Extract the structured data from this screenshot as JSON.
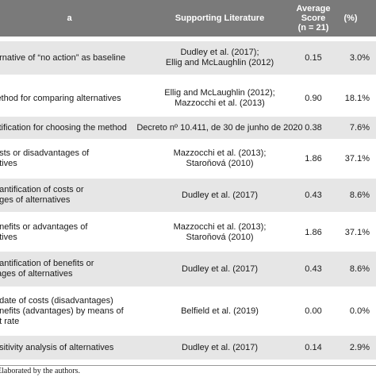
{
  "header": {
    "criteria": "a",
    "literature": "Supporting Literature",
    "score": "Average\nScore\n(n = 21)",
    "pct": "(%)"
  },
  "rows": [
    {
      "criteria": "ernative of “no action” as baseline",
      "literature": "Dudley et al. (2017);\nEllig and McLaughlin (2012)",
      "score": "0.15",
      "pct": "3.0%"
    },
    {
      "criteria": "lethod for comparing alternatives",
      "literature": "Ellig and McLaughlin (2012);\nMazzocchi et al. (2013)",
      "score": "0.90",
      "pct": "18.1%"
    },
    {
      "criteria": "stification for choosing the method",
      "literature": "Decreto nº 10.411, de 30 de junho de 2020",
      "score": "0.38",
      "pct": "7.6%"
    },
    {
      "criteria": "osts or disadvantages of\natives",
      "literature": "Mazzocchi et al. (2013);\nStaroňová (2010)",
      "score": "1.86",
      "pct": "37.1%"
    },
    {
      "criteria": "uantification of costs or\nages of alternatives",
      "literature": "Dudley et al. (2017)",
      "score": "0.43",
      "pct": "8.6%"
    },
    {
      "criteria": "enefits or advantages of\natives",
      "literature": "Mazzocchi et al. (2013);\nStaroňová (2010)",
      "score": "1.86",
      "pct": "37.1%"
    },
    {
      "criteria": "uantification of benefits or\ntages of alternatives",
      "literature": "Dudley et al. (2017)",
      "score": "0.43",
      "pct": "8.6%"
    },
    {
      "criteria": "odate of costs (disadvantages)\nenefits (advantages) by means of\nnt rate",
      "literature": "Belfield et al. (2019)",
      "score": "0.00",
      "pct": "0.0%"
    },
    {
      "criteria": "nsitivity analysis of alternatives",
      "literature": "Dudley et al. (2017)",
      "score": "0.14",
      "pct": "2.9%"
    }
  ],
  "footnote": "Elaborated by the authors.",
  "colors": {
    "header_bg": "#7a7a7a",
    "shade_bg": "#e6e6e6"
  }
}
